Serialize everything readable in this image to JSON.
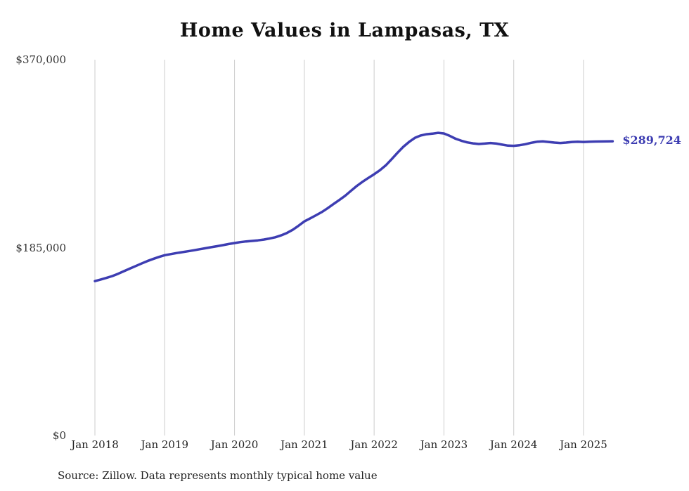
{
  "title": "Home Values in Lampasas, TX",
  "end_label": "$289,724",
  "source_note": "Source: Zillow. Data represents monthly typical home value",
  "colors": {
    "line": "#3d3db2",
    "grid": "#cccccc",
    "title": "#111111",
    "axis_text": "#333333"
  },
  "chart_data": {
    "type": "line",
    "title": "Home Values in Lampasas, TX",
    "xlabel": "",
    "ylabel": "",
    "ylim": [
      0,
      370000
    ],
    "grid": "vertical-only",
    "legend": "none",
    "x_start_month": "Jan 2018",
    "x_end_month": "Jun 2025",
    "x_ticks": [
      "Jan 2018",
      "Jan 2019",
      "Jan 2020",
      "Jan 2021",
      "Jan 2022",
      "Jan 2023",
      "Jan 2024",
      "Jan 2025"
    ],
    "y_ticks": [
      {
        "label": "$0",
        "value": 0
      },
      {
        "label": "$185,000",
        "value": 185000
      },
      {
        "label": "$370,000",
        "value": 370000
      }
    ],
    "last_value": 289724,
    "last_value_label": "$289,724",
    "series": [
      {
        "name": "Monthly typical home value",
        "values": [
          152000,
          153600,
          155200,
          157000,
          159300,
          161800,
          164300,
          166800,
          169300,
          171700,
          173800,
          175800,
          177500,
          178600,
          179600,
          180500,
          181400,
          182400,
          183400,
          184400,
          185400,
          186400,
          187400,
          188500,
          189500,
          190400,
          191100,
          191600,
          192100,
          192900,
          193900,
          195200,
          197000,
          199400,
          202500,
          206500,
          210800,
          213800,
          216800,
          220000,
          223800,
          227800,
          231800,
          236000,
          240800,
          245600,
          249800,
          253600,
          257200,
          261200,
          266000,
          272000,
          278200,
          284200,
          289000,
          293000,
          295400,
          296600,
          297200,
          298000,
          297400,
          295000,
          292200,
          290200,
          288600,
          287600,
          287000,
          287400,
          288000,
          287400,
          286400,
          285400,
          285200,
          285800,
          286800,
          288200,
          289200,
          289600,
          289000,
          288400,
          288000,
          288400,
          289000,
          289200,
          289000,
          289200,
          289400,
          289500,
          289600,
          289724
        ]
      }
    ]
  }
}
